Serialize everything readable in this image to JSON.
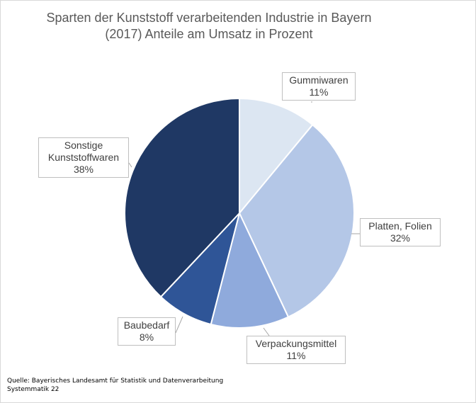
{
  "chart_data": {
    "type": "pie",
    "title_lines": [
      "Sparten der Kunststoff verarbeitenden Industrie in Bayern",
      "(2017) Anteile am Umsatz in Prozent"
    ],
    "slices": [
      {
        "category_lines": [
          "Gummiwaren"
        ],
        "value": 11,
        "label": "11%",
        "color": "#dce6f2"
      },
      {
        "category_lines": [
          "Platten, Folien"
        ],
        "value": 32,
        "label": "32%",
        "color": "#b4c7e7"
      },
      {
        "category_lines": [
          "Verpackungsmittel"
        ],
        "value": 11,
        "label": "11%",
        "color": "#8faadc"
      },
      {
        "category_lines": [
          "Baubedarf"
        ],
        "value": 8,
        "label": "8%",
        "color": "#2f5597"
      },
      {
        "category_lines": [
          "Sonstige",
          "Kunststoffwaren"
        ],
        "value": 38,
        "label": "38%",
        "color": "#1f3864"
      }
    ],
    "legend": "none"
  },
  "source_lines": [
    "Quelle:  Bayerisches Landesamt für Statistik und Datenverarbeitung",
    "Systemmatik 22"
  ]
}
